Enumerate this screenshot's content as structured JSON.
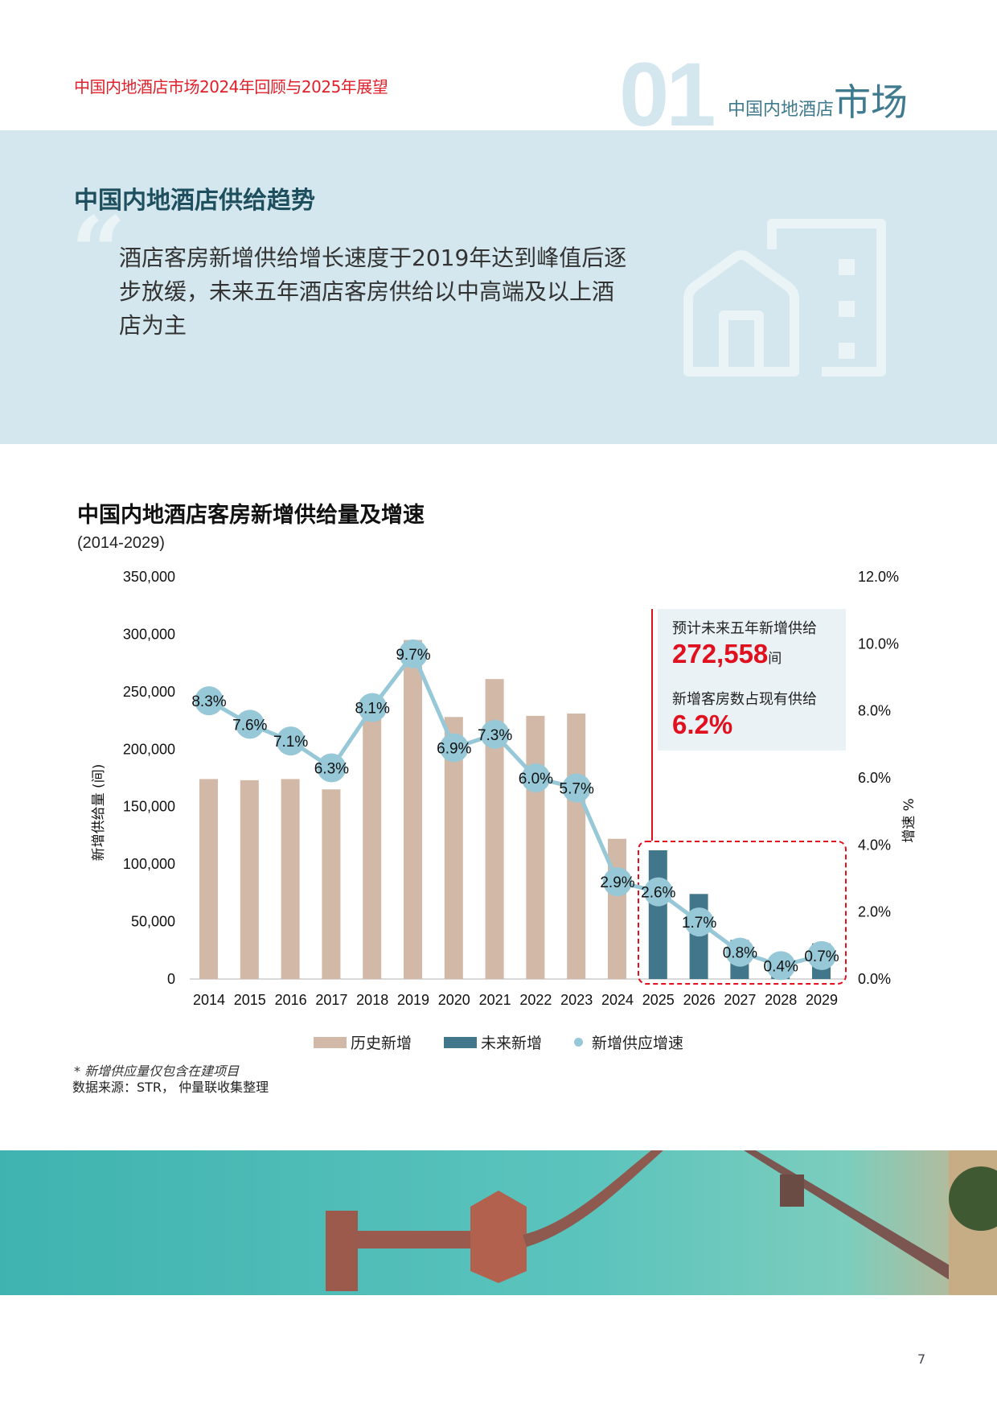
{
  "header": {
    "report_title": "中国内地酒店市场2024年回顾与2025年展望",
    "section_number": "01",
    "section_label_small": "中国内地酒店",
    "section_label_large": "市场"
  },
  "banner": {
    "title": "中国内地酒店供给趋势",
    "quote_mark": "“",
    "quote_text": "酒店客房新增供给增长速度于2019年达到峰值后逐步放缓，未来五年酒店客房供给以中高端及以上酒店为主",
    "icon": "house-building-icon"
  },
  "callout": {
    "label1": "预计未来五年新增供给",
    "value1": "272,558",
    "unit1": "间",
    "label2": "新增客房数占现有供给",
    "value2": "6.2%"
  },
  "legend": {
    "historical": "历史新增",
    "future": "未来新增",
    "growth": "新增供应增速"
  },
  "footnote": "* 新增供应量仅包含在建项目",
  "source": "数据来源：STR， 仲量联收集整理",
  "page_number": "7",
  "colors": {
    "accent_red": "#e0101e",
    "historical_bar": "#d1b8a7",
    "future_bar": "#42778b",
    "growth_line": "#97c8d7",
    "banner_bg": "#d5e7ee",
    "title_teal": "#1e4f5e"
  },
  "chart_data": {
    "type": "bar",
    "title": "中国内地酒店客房新增供给量及增速",
    "subtitle": "(2014-2029)",
    "xlabel": "",
    "ylabel": "新增供给量 (间)",
    "y2label": "增速 %",
    "ylim": [
      0,
      350000
    ],
    "y2lim": [
      0,
      12.0
    ],
    "yticks": [
      "0",
      "50,000",
      "100,000",
      "150,000",
      "200,000",
      "250,000",
      "300,000",
      "350,000"
    ],
    "y2ticks": [
      "0.0%",
      "2.0%",
      "4.0%",
      "6.0%",
      "8.0%",
      "10.0%",
      "12.0%"
    ],
    "categories": [
      "2014",
      "2015",
      "2016",
      "2017",
      "2018",
      "2019",
      "2020",
      "2021",
      "2022",
      "2023",
      "2024",
      "2025",
      "2026",
      "2027",
      "2028",
      "2029"
    ],
    "series": [
      {
        "name": "历史新增",
        "type": "bar",
        "axis": "left",
        "values": [
          174000,
          173000,
          174000,
          165000,
          230000,
          295000,
          228000,
          261000,
          229000,
          231000,
          122000,
          null,
          null,
          null,
          null,
          null
        ]
      },
      {
        "name": "未来新增",
        "type": "bar",
        "axis": "left",
        "values": [
          null,
          null,
          null,
          null,
          null,
          null,
          null,
          null,
          null,
          null,
          null,
          112000,
          74000,
          34000,
          21000,
          31000
        ]
      },
      {
        "name": "新增供应增速",
        "type": "line",
        "axis": "right",
        "values": [
          8.3,
          7.6,
          7.1,
          6.3,
          8.1,
          9.7,
          6.9,
          7.3,
          6.0,
          5.7,
          2.9,
          2.6,
          1.7,
          0.8,
          0.4,
          0.7
        ],
        "labels": [
          "8.3%",
          "7.6%",
          "7.1%",
          "6.3%",
          "8.1%",
          "9.7%",
          "6.9%",
          "7.3%",
          "6.0%",
          "5.7%",
          "2.9%",
          "2.6%",
          "1.7%",
          "0.8%",
          "0.4%",
          "0.7%"
        ]
      }
    ],
    "annotations": [
      "Dashed red box highlighting forecast years 2025-2029",
      "预计未来五年新增供给 272,558间",
      "新增客房数占现有供给 6.2%"
    ],
    "grid": false,
    "legend_position": "bottom"
  }
}
